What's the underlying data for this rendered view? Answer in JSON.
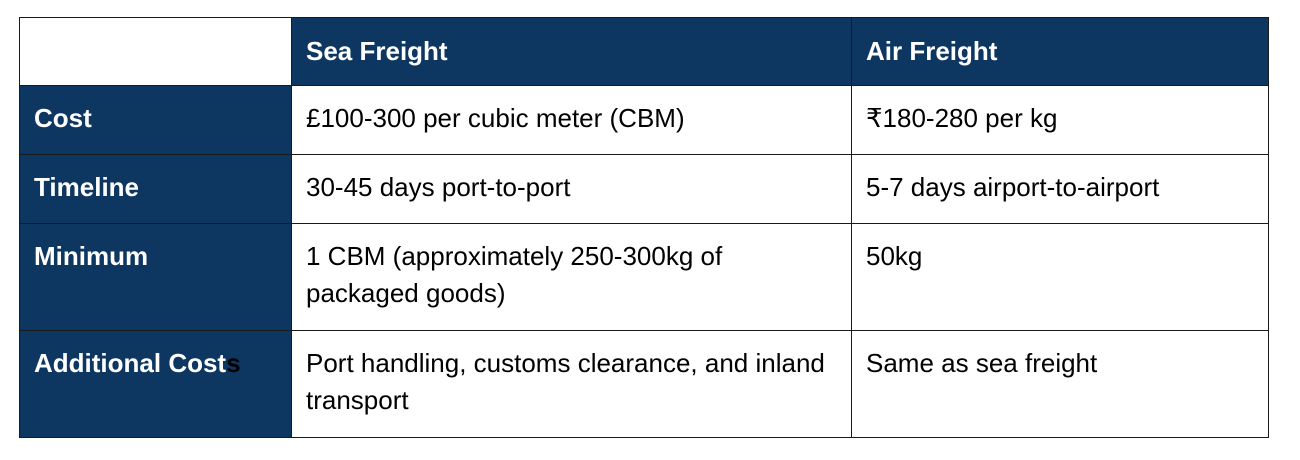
{
  "table": {
    "headers": [
      "",
      "Sea Freight",
      "Air Freight"
    ],
    "rows": [
      {
        "label": "Cost",
        "sea": "£100-300 per cubic meter (CBM)",
        "air": "₹180-280 per kg"
      },
      {
        "label": "Timeline",
        "sea": "30-45 days port-to-port",
        "air": "5-7 days airport-to-airport"
      },
      {
        "label": "Minimum",
        "sea": " 1 CBM (approximately 250-300kg of packaged goods)",
        "air": "50kg"
      },
      {
        "label_main": "Additional Cost",
        "label_tail": "s",
        "sea": " Port handling, customs clearance, and inland transport",
        "air": "Same as sea freight"
      }
    ]
  },
  "colors": {
    "header_bg": "#0d3761",
    "header_text": "#ffffff",
    "border": "#1a1a1a"
  }
}
